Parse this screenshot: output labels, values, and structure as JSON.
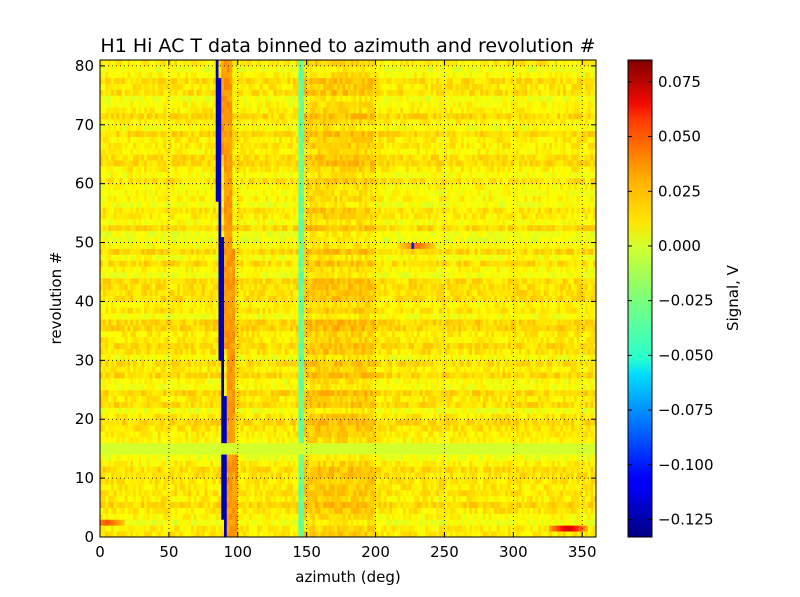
{
  "chart_data": {
    "type": "heatmap",
    "title": "H1 Hi AC T data binned to azimuth and revolution #",
    "xlabel": "azimuth (deg)",
    "ylabel": "revolution #",
    "xlim": [
      0,
      360
    ],
    "ylim": [
      0,
      81
    ],
    "xticks": [
      "0",
      "50",
      "100",
      "150",
      "200",
      "250",
      "300",
      "350"
    ],
    "yticks": [
      "0",
      "10",
      "20",
      "30",
      "40",
      "50",
      "60",
      "70",
      "80"
    ],
    "grid": true,
    "colormap": "jet",
    "colorbar": {
      "label": "Signal, V",
      "range": [
        -0.133,
        0.085
      ],
      "ticks": [
        "0.075",
        "0.050",
        "0.025",
        "0.000",
        "−0.025",
        "−0.050",
        "−0.075",
        "−0.100",
        "−0.125"
      ]
    },
    "features": {
      "negative_streak": {
        "azimuth_at_rev_0": 91,
        "azimuth_at_rev_81": 85,
        "value": -0.12
      },
      "positive_band": {
        "azimuth_start_at_rev_0": 93,
        "azimuth_start_at_rev_81": 88,
        "width_deg": 7,
        "value": 0.025
      },
      "cyan_band": {
        "azimuth": 146,
        "width_deg": 5,
        "value": -0.03
      },
      "missing_revolutions": [
        14.5,
        15.5
      ],
      "hot_bins": [
        {
          "azimuth": 340,
          "revolution": 1.5,
          "value": 0.07
        },
        {
          "azimuth": 5,
          "revolution": 2.5,
          "value": 0.04
        },
        {
          "azimuth": 230,
          "revolution": 49.5,
          "value": 0.035
        }
      ],
      "cold_bins": [
        {
          "azimuth": 227,
          "revolution": 49.5,
          "value": -0.1
        }
      ]
    }
  }
}
